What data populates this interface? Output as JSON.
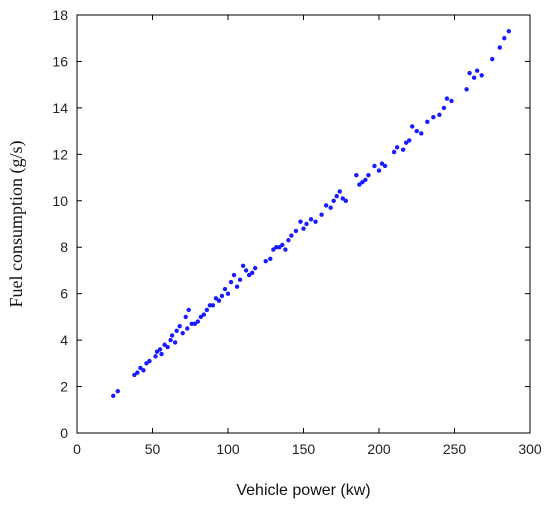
{
  "chart_data": {
    "type": "scatter",
    "xlabel": "Vehicle power (kw)",
    "ylabel": "Fuel consumption (g/s)",
    "xlim": [
      0,
      300
    ],
    "ylim": [
      0,
      18
    ],
    "xticks": [
      "0",
      "50",
      "100",
      "150",
      "200",
      "250",
      "300"
    ],
    "yticks": [
      "0",
      "2",
      "4",
      "6",
      "8",
      "10",
      "12",
      "14",
      "16",
      "18"
    ],
    "grid": false,
    "legend": "none",
    "color": "#1a1aff",
    "series": [
      {
        "points": [
          [
            24,
            1.6
          ],
          [
            27,
            1.8
          ],
          [
            38,
            2.5
          ],
          [
            40,
            2.6
          ],
          [
            42,
            2.8
          ],
          [
            44,
            2.7
          ],
          [
            46,
            3.0
          ],
          [
            48,
            3.1
          ],
          [
            52,
            3.3
          ],
          [
            53,
            3.5
          ],
          [
            55,
            3.6
          ],
          [
            56,
            3.4
          ],
          [
            58,
            3.8
          ],
          [
            60,
            3.7
          ],
          [
            62,
            4.0
          ],
          [
            63,
            4.2
          ],
          [
            65,
            3.9
          ],
          [
            66,
            4.4
          ],
          [
            68,
            4.6
          ],
          [
            70,
            4.3
          ],
          [
            72,
            5.0
          ],
          [
            73,
            4.5
          ],
          [
            74,
            5.3
          ],
          [
            76,
            4.7
          ],
          [
            78,
            4.7
          ],
          [
            80,
            4.8
          ],
          [
            82,
            5.0
          ],
          [
            84,
            5.1
          ],
          [
            86,
            5.3
          ],
          [
            88,
            5.5
          ],
          [
            90,
            5.5
          ],
          [
            92,
            5.8
          ],
          [
            94,
            5.7
          ],
          [
            96,
            5.9
          ],
          [
            98,
            6.2
          ],
          [
            100,
            6.0
          ],
          [
            102,
            6.5
          ],
          [
            104,
            6.8
          ],
          [
            106,
            6.3
          ],
          [
            108,
            6.6
          ],
          [
            110,
            7.2
          ],
          [
            112,
            7.0
          ],
          [
            114,
            6.8
          ],
          [
            116,
            6.9
          ],
          [
            118,
            7.1
          ],
          [
            125,
            7.4
          ],
          [
            128,
            7.5
          ],
          [
            130,
            7.9
          ],
          [
            132,
            8.0
          ],
          [
            134,
            8.0
          ],
          [
            136,
            8.1
          ],
          [
            138,
            7.9
          ],
          [
            140,
            8.3
          ],
          [
            142,
            8.5
          ],
          [
            145,
            8.7
          ],
          [
            148,
            9.1
          ],
          [
            150,
            8.8
          ],
          [
            152,
            9.0
          ],
          [
            155,
            9.2
          ],
          [
            158,
            9.1
          ],
          [
            162,
            9.4
          ],
          [
            165,
            9.8
          ],
          [
            168,
            9.7
          ],
          [
            170,
            10.0
          ],
          [
            172,
            10.2
          ],
          [
            174,
            10.4
          ],
          [
            176,
            10.1
          ],
          [
            178,
            10.0
          ],
          [
            185,
            11.1
          ],
          [
            187,
            10.7
          ],
          [
            189,
            10.8
          ],
          [
            191,
            10.9
          ],
          [
            193,
            11.1
          ],
          [
            197,
            11.5
          ],
          [
            200,
            11.3
          ],
          [
            202,
            11.6
          ],
          [
            204,
            11.5
          ],
          [
            210,
            12.1
          ],
          [
            212,
            12.3
          ],
          [
            216,
            12.2
          ],
          [
            218,
            12.5
          ],
          [
            220,
            12.6
          ],
          [
            222,
            13.2
          ],
          [
            225,
            13.0
          ],
          [
            228,
            12.9
          ],
          [
            232,
            13.4
          ],
          [
            236,
            13.6
          ],
          [
            240,
            13.7
          ],
          [
            243,
            14.0
          ],
          [
            245,
            14.4
          ],
          [
            248,
            14.3
          ],
          [
            258,
            14.8
          ],
          [
            260,
            15.5
          ],
          [
            263,
            15.3
          ],
          [
            265,
            15.6
          ],
          [
            268,
            15.4
          ],
          [
            275,
            16.1
          ],
          [
            280,
            16.6
          ],
          [
            283,
            17.0
          ],
          [
            286,
            17.3
          ]
        ]
      }
    ]
  }
}
